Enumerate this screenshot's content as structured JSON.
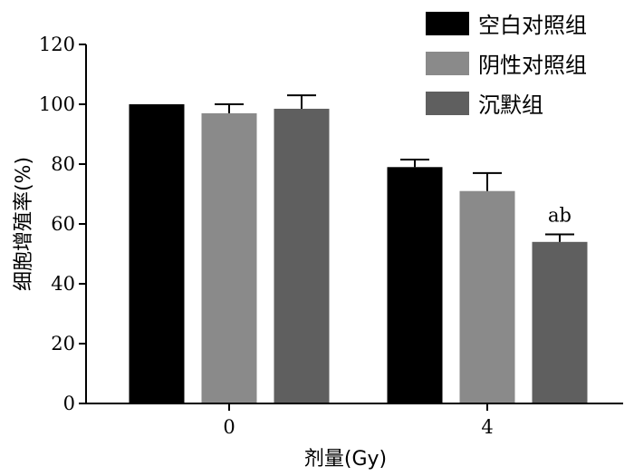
{
  "chart_data": {
    "type": "bar",
    "xlabel": "剂量(Gy)",
    "ylabel": "细胞增殖率(%)",
    "ylim": [
      0,
      120
    ],
    "yticks": [
      0,
      20,
      40,
      60,
      80,
      100,
      120
    ],
    "categories": [
      "0",
      "4"
    ],
    "series": [
      {
        "name": "空白对照组",
        "color": "#000000",
        "values": [
          100,
          79
        ],
        "errors": [
          0,
          2.5
        ]
      },
      {
        "name": "阴性对照组",
        "color": "#8a8a8a",
        "values": [
          97,
          71
        ],
        "errors": [
          3,
          6
        ]
      },
      {
        "name": "沉默组",
        "color": "#5f5f5f",
        "values": [
          98.5,
          54
        ],
        "errors": [
          4.5,
          2.5
        ]
      }
    ],
    "annotations": [
      {
        "text": "ab",
        "category": "4",
        "series": "沉默组"
      }
    ],
    "legend_position": "top-right",
    "grid": false
  }
}
